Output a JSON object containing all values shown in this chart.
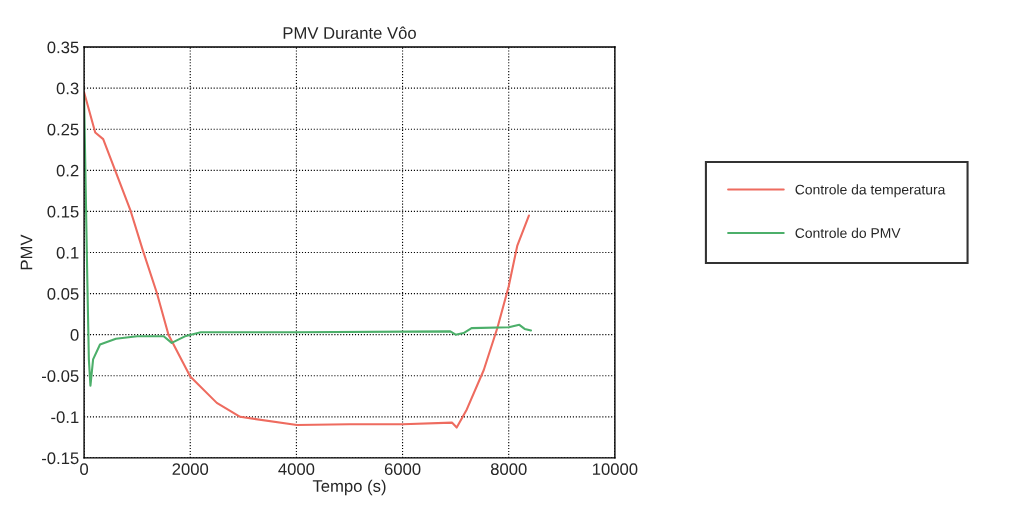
{
  "chart_data": {
    "type": "line",
    "title": "PMV Durante Vôo",
    "xlabel": "Tempo (s)",
    "ylabel": "PMV",
    "series": [
      {
        "name": "Controle da temperatura",
        "color": "#ee6b5f",
        "x": [
          0,
          210,
          360,
          870,
          1110,
          1370,
          1590,
          2000,
          2500,
          2940,
          4010,
          5000,
          6000,
          6930,
          7020,
          7210,
          7530,
          7790,
          8000,
          8160,
          8380
        ],
        "values": [
          0.295,
          0.246,
          0.238,
          0.152,
          0.102,
          0.051,
          0.0,
          -0.051,
          -0.083,
          -0.1,
          -0.11,
          -0.109,
          -0.109,
          -0.107,
          -0.113,
          -0.091,
          -0.043,
          0.009,
          0.059,
          0.108,
          0.145
        ]
      },
      {
        "name": "Controle do PMV",
        "color": "#4caf6a",
        "x": [
          0,
          30,
          60,
          90,
          120,
          170,
          300,
          600,
          1000,
          1500,
          1650,
          1900,
          2200,
          4000,
          6900,
          7000,
          7150,
          7300,
          8000,
          8200,
          8300,
          8420
        ],
        "values": [
          0.29,
          0.18,
          0.07,
          -0.03,
          -0.062,
          -0.03,
          -0.012,
          -0.005,
          -0.002,
          -0.002,
          -0.01,
          -0.002,
          0.003,
          0.003,
          0.004,
          0.0,
          0.002,
          0.008,
          0.009,
          0.012,
          0.007,
          0.005
        ]
      }
    ],
    "xlim": [
      0,
      10000
    ],
    "xticks": [
      0,
      2000,
      4000,
      6000,
      8000,
      10000
    ],
    "ylim": [
      -0.15,
      0.35
    ],
    "yticks": [
      -0.15,
      -0.1,
      -0.05,
      0,
      0.05,
      0.1,
      0.15,
      0.2,
      0.25,
      0.3,
      0.35
    ],
    "grid": true,
    "legend": "right",
    "marker": "none",
    "line_style": "solid"
  }
}
